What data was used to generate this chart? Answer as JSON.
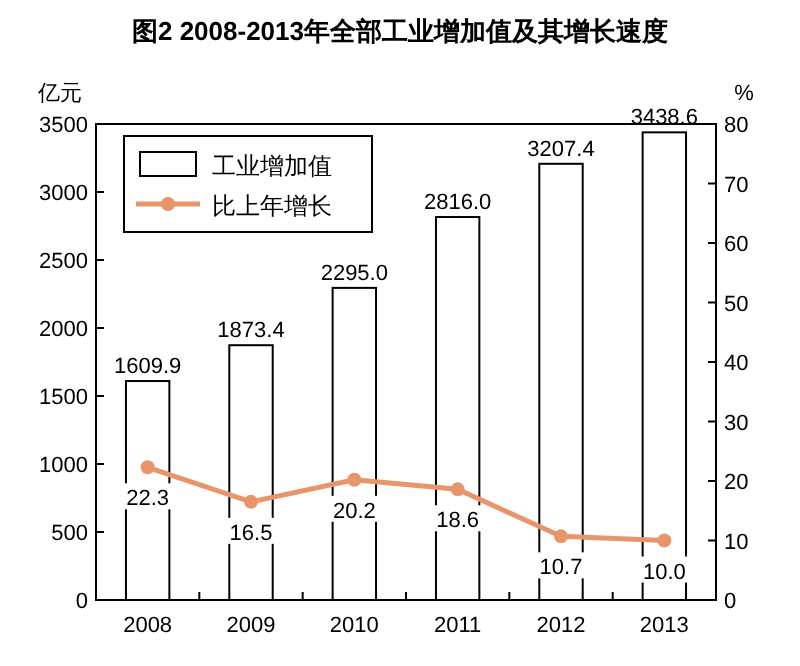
{
  "chart_data": {
    "type": "bar",
    "title": "图2 2008-2013年全部工业增加值及其增长速度",
    "ylabel": "亿元",
    "y2label": "%",
    "categories": [
      "2008",
      "2009",
      "2010",
      "2011",
      "2012",
      "2013"
    ],
    "series": [
      {
        "name": "工业增加值",
        "color": "#ffffff",
        "values": [
          1609.9,
          1873.4,
          2295.0,
          2816.0,
          3207.4,
          3438.6
        ],
        "value_labels": [
          "1609.9",
          "1873.4",
          "2295.0",
          "2816.0",
          "3207.4",
          "3438.6"
        ]
      },
      {
        "name": "比上年增长",
        "type": "line",
        "axis": "y2",
        "color": "#e8956b",
        "marker": "circle",
        "values": [
          22.3,
          16.5,
          20.2,
          18.6,
          10.7,
          10.0
        ],
        "value_labels": [
          "22.3",
          "16.5",
          "20.2",
          "18.6",
          "10.7",
          "10.0"
        ]
      }
    ],
    "ylim": [
      0,
      3500
    ],
    "yticks": [
      0,
      500,
      1000,
      1500,
      2000,
      2500,
      3000,
      3500
    ],
    "y2lim": [
      0,
      80
    ],
    "y2ticks": [
      0,
      10,
      20,
      30,
      40,
      50,
      60,
      70,
      80
    ],
    "legend": "top left",
    "grid": false
  }
}
